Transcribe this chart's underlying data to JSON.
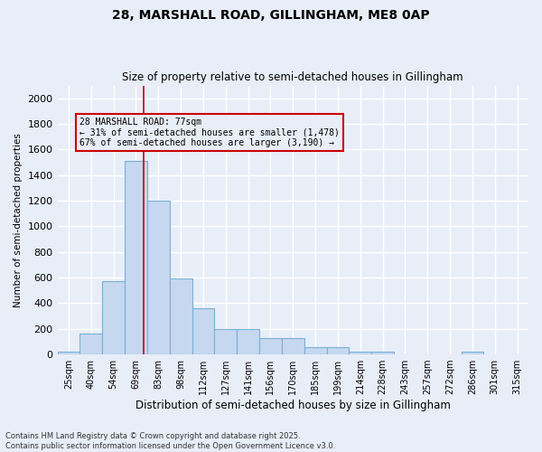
{
  "title1": "28, MARSHALL ROAD, GILLINGHAM, ME8 0AP",
  "title2": "Size of property relative to semi-detached houses in Gillingham",
  "xlabel": "Distribution of semi-detached houses by size in Gillingham",
  "ylabel": "Number of semi-detached properties",
  "categories": [
    "25sqm",
    "40sqm",
    "54sqm",
    "69sqm",
    "83sqm",
    "98sqm",
    "112sqm",
    "127sqm",
    "141sqm",
    "156sqm",
    "170sqm",
    "185sqm",
    "199sqm",
    "214sqm",
    "228sqm",
    "243sqm",
    "257sqm",
    "272sqm",
    "286sqm",
    "301sqm",
    "315sqm"
  ],
  "values": [
    20,
    160,
    570,
    1510,
    1200,
    595,
    360,
    200,
    200,
    130,
    130,
    55,
    55,
    25,
    25,
    0,
    0,
    0,
    20,
    0,
    0
  ],
  "bar_color": "#c5d8f0",
  "bar_edge_color": "#7bafd4",
  "annotation_title": "28 MARSHALL ROAD: 77sqm",
  "annotation_line1": "← 31% of semi-detached houses are smaller (1,478)",
  "annotation_line2": "67% of semi-detached houses are larger (3,190) →",
  "vline_color": "#cc0000",
  "vline_x": 3.35,
  "box_edge_color": "#cc0000",
  "ylim": [
    0,
    2100
  ],
  "yticks": [
    0,
    200,
    400,
    600,
    800,
    1000,
    1200,
    1400,
    1600,
    1800,
    2000
  ],
  "bg_color": "#e8eef8",
  "grid_color": "#ffffff",
  "footnote1": "Contains HM Land Registry data © Crown copyright and database right 2025.",
  "footnote2": "Contains public sector information licensed under the Open Government Licence v3.0."
}
